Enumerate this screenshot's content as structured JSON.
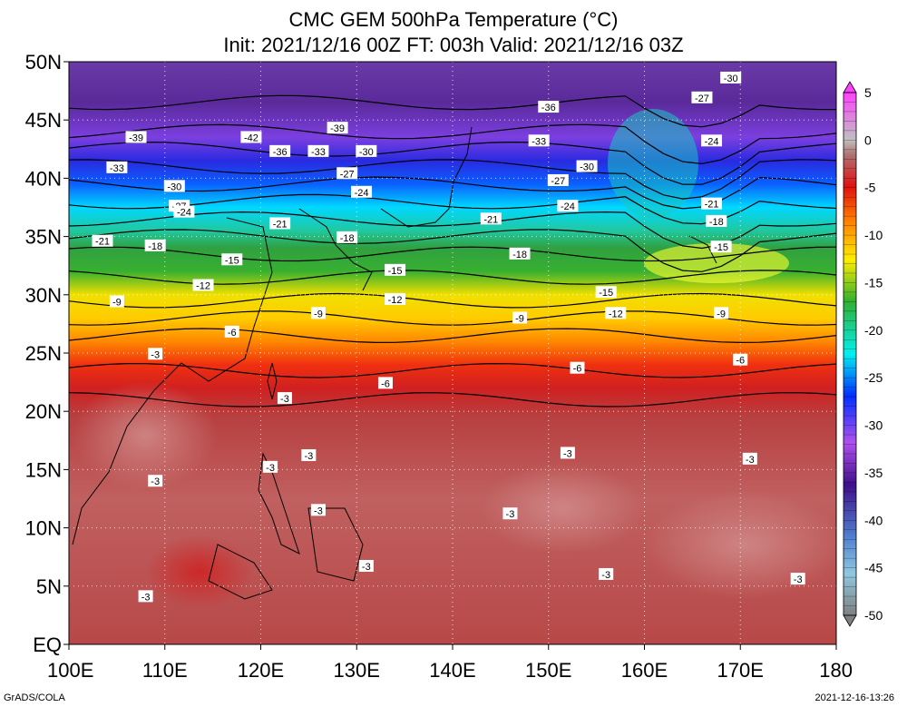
{
  "title": {
    "line1": "CMC GEM 500hPa Temperature (°C)",
    "line2": "Init: 2021/12/16 00Z  FT: 003h  Valid: 2021/12/16 03Z"
  },
  "footer": {
    "left": "GrADS/COLA",
    "right": "2021-12-16-13:26"
  },
  "map": {
    "lat_labels": [
      "50N",
      "45N",
      "40N",
      "35N",
      "30N",
      "25N",
      "20N",
      "15N",
      "10N",
      "5N",
      "EQ"
    ],
    "lon_labels": [
      "100E",
      "110E",
      "120E",
      "130E",
      "140E",
      "150E",
      "160E",
      "170E",
      "180"
    ],
    "lat_range": [
      0,
      50
    ],
    "lon_range": [
      100,
      180
    ],
    "grid": "dotted"
  },
  "colorbar": {
    "labels": [
      "5",
      "0",
      "-5",
      "-10",
      "-15",
      "-20",
      "-25",
      "-30",
      "-35",
      "-40",
      "-45",
      "-50"
    ],
    "levels": [
      5,
      4,
      3,
      2,
      1,
      0,
      -1,
      -2,
      -3,
      -4,
      -5,
      -6,
      -7,
      -8,
      -9,
      -10,
      -11,
      -12,
      -13,
      -14,
      -15,
      -16,
      -17,
      -18,
      -19,
      -20,
      -21,
      -22,
      -23,
      -24,
      -25,
      -26,
      -27,
      -28,
      -29,
      -30,
      -31,
      -32,
      -33,
      -34,
      -35,
      -36,
      -37,
      -38,
      -39,
      -40,
      -41,
      -42,
      -43,
      -44,
      -45,
      -46,
      -47,
      -48,
      -49,
      -50
    ],
    "colors": {
      "warm_max": "#ff00ff",
      "zero": "#d0d0d0",
      "neg3": "#c97070",
      "neg7": "#e01010",
      "neg10": "#ff9900",
      "neg15": "#ffff00",
      "neg20": "#00a000",
      "neg25": "#00ffff",
      "neg30": "#0000e0",
      "neg35": "#b040f0",
      "neg40": "#300090",
      "neg45": "#80c0e0",
      "neg50": "#909090"
    }
  },
  "contour_labels": [
    {
      "text": "-30",
      "lon": 169,
      "lat": 48.6
    },
    {
      "text": "-27",
      "lon": 166,
      "lat": 46.9
    },
    {
      "text": "-36",
      "lon": 150,
      "lat": 46.1
    },
    {
      "text": "-39",
      "lon": 128,
      "lat": 44.3
    },
    {
      "text": "-39",
      "lon": 107,
      "lat": 43.5
    },
    {
      "text": "-42",
      "lon": 119,
      "lat": 43.5
    },
    {
      "text": "-33",
      "lon": 149,
      "lat": 43.2
    },
    {
      "text": "-24",
      "lon": 167,
      "lat": 43.2
    },
    {
      "text": "-36",
      "lon": 122,
      "lat": 42.3
    },
    {
      "text": "-33",
      "lon": 126,
      "lat": 42.3
    },
    {
      "text": "-30",
      "lon": 131,
      "lat": 42.3
    },
    {
      "text": "-30",
      "lon": 154,
      "lat": 41.0
    },
    {
      "text": "-33",
      "lon": 105,
      "lat": 40.9
    },
    {
      "text": "-27",
      "lon": 129,
      "lat": 40.4
    },
    {
      "text": "-27",
      "lon": 151,
      "lat": 39.8
    },
    {
      "text": "-30",
      "lon": 111,
      "lat": 39.3
    },
    {
      "text": "-24",
      "lon": 130.5,
      "lat": 38.8
    },
    {
      "text": "-27",
      "lon": 111.5,
      "lat": 37.6
    },
    {
      "text": "-24",
      "lon": 112,
      "lat": 37.1
    },
    {
      "text": "-24",
      "lon": 152,
      "lat": 37.6
    },
    {
      "text": "-21",
      "lon": 167,
      "lat": 37.8
    },
    {
      "text": "-18",
      "lon": 167.5,
      "lat": 36.3
    },
    {
      "text": "-21",
      "lon": 144,
      "lat": 36.5
    },
    {
      "text": "-21",
      "lon": 122,
      "lat": 36.1
    },
    {
      "text": "-18",
      "lon": 129,
      "lat": 34.9
    },
    {
      "text": "-21",
      "lon": 103.5,
      "lat": 34.6
    },
    {
      "text": "-18",
      "lon": 109,
      "lat": 34.2
    },
    {
      "text": "-15",
      "lon": 168,
      "lat": 34.1
    },
    {
      "text": "-18",
      "lon": 147,
      "lat": 33.5
    },
    {
      "text": "-15",
      "lon": 117,
      "lat": 33.0
    },
    {
      "text": "-15",
      "lon": 134,
      "lat": 32.1
    },
    {
      "text": "-12",
      "lon": 114,
      "lat": 30.8
    },
    {
      "text": "-15",
      "lon": 156,
      "lat": 30.2
    },
    {
      "text": "-12",
      "lon": 134,
      "lat": 29.6
    },
    {
      "text": "-9",
      "lon": 105,
      "lat": 29.4
    },
    {
      "text": "-9",
      "lon": 126,
      "lat": 28.4
    },
    {
      "text": "-9",
      "lon": 147,
      "lat": 28.0
    },
    {
      "text": "-12",
      "lon": 157,
      "lat": 28.4
    },
    {
      "text": "-9",
      "lon": 168,
      "lat": 28.4
    },
    {
      "text": "-6",
      "lon": 117,
      "lat": 26.8
    },
    {
      "text": "-3",
      "lon": 109,
      "lat": 24.9
    },
    {
      "text": "-6",
      "lon": 170,
      "lat": 24.4
    },
    {
      "text": "-6",
      "lon": 153,
      "lat": 23.7
    },
    {
      "text": "-6",
      "lon": 133,
      "lat": 22.4
    },
    {
      "text": "-3",
      "lon": 122.5,
      "lat": 21.1
    },
    {
      "text": "-3",
      "lon": 125,
      "lat": 16.2
    },
    {
      "text": "-3",
      "lon": 152,
      "lat": 16.4
    },
    {
      "text": "-3",
      "lon": 171,
      "lat": 15.9
    },
    {
      "text": "-3",
      "lon": 121,
      "lat": 15.2
    },
    {
      "text": "-3",
      "lon": 109,
      "lat": 14.0
    },
    {
      "text": "-3",
      "lon": 126,
      "lat": 11.5
    },
    {
      "text": "-3",
      "lon": 146,
      "lat": 11.2
    },
    {
      "text": "-3",
      "lon": 131,
      "lat": 6.7
    },
    {
      "text": "-3",
      "lon": 156,
      "lat": 6.0
    },
    {
      "text": "-3",
      "lon": 176,
      "lat": 5.6
    },
    {
      "text": "-3",
      "lon": 108,
      "lat": 4.1
    }
  ]
}
